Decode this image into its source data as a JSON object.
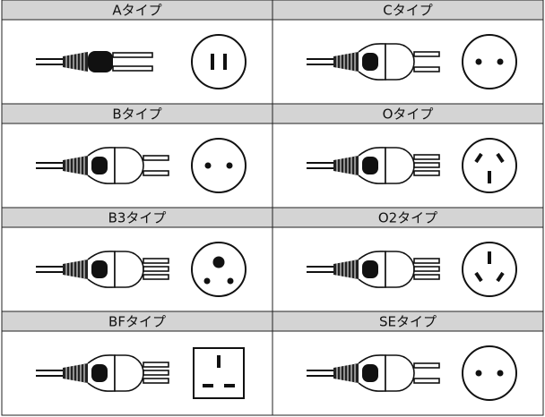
{
  "table": {
    "rows": [
      [
        "Aタイプ",
        "Cタイプ"
      ],
      [
        "Bタイプ",
        "Oタイプ"
      ],
      [
        "B3タイプ",
        "O2タイプ"
      ],
      [
        "BFタイプ",
        "SEタイプ"
      ]
    ]
  }
}
